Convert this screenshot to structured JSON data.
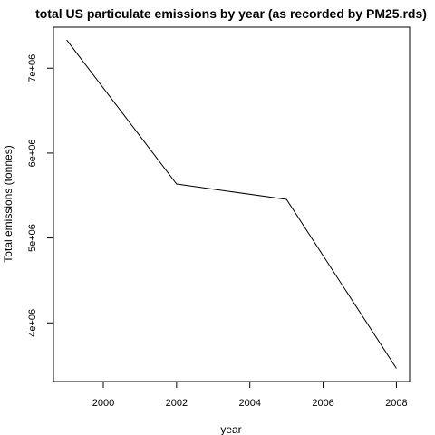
{
  "chart_data": {
    "type": "line",
    "title": "total US particulate emissions by year (as recorded by PM25.rds)",
    "xlabel": "year",
    "ylabel": "Total emissions (tonnes)",
    "x": [
      1999,
      2002,
      2005,
      2008
    ],
    "series": [
      {
        "values": [
          7332967,
          5635780,
          5454703,
          3464206
        ]
      }
    ],
    "xlim": [
      1998.64,
      2008.36
    ],
    "ylim": [
      3309092,
      7483000
    ],
    "xticks": [
      2000,
      2002,
      2004,
      2006,
      2008
    ],
    "xtick_labels": [
      "2000",
      "2002",
      "2004",
      "2006",
      "2008"
    ],
    "yticks": [
      4000000,
      5000000,
      6000000,
      7000000
    ],
    "ytick_labels": [
      "4e+06",
      "5e+06",
      "6e+06",
      "7e+06"
    ],
    "grid": false,
    "line_color": "#000000"
  }
}
